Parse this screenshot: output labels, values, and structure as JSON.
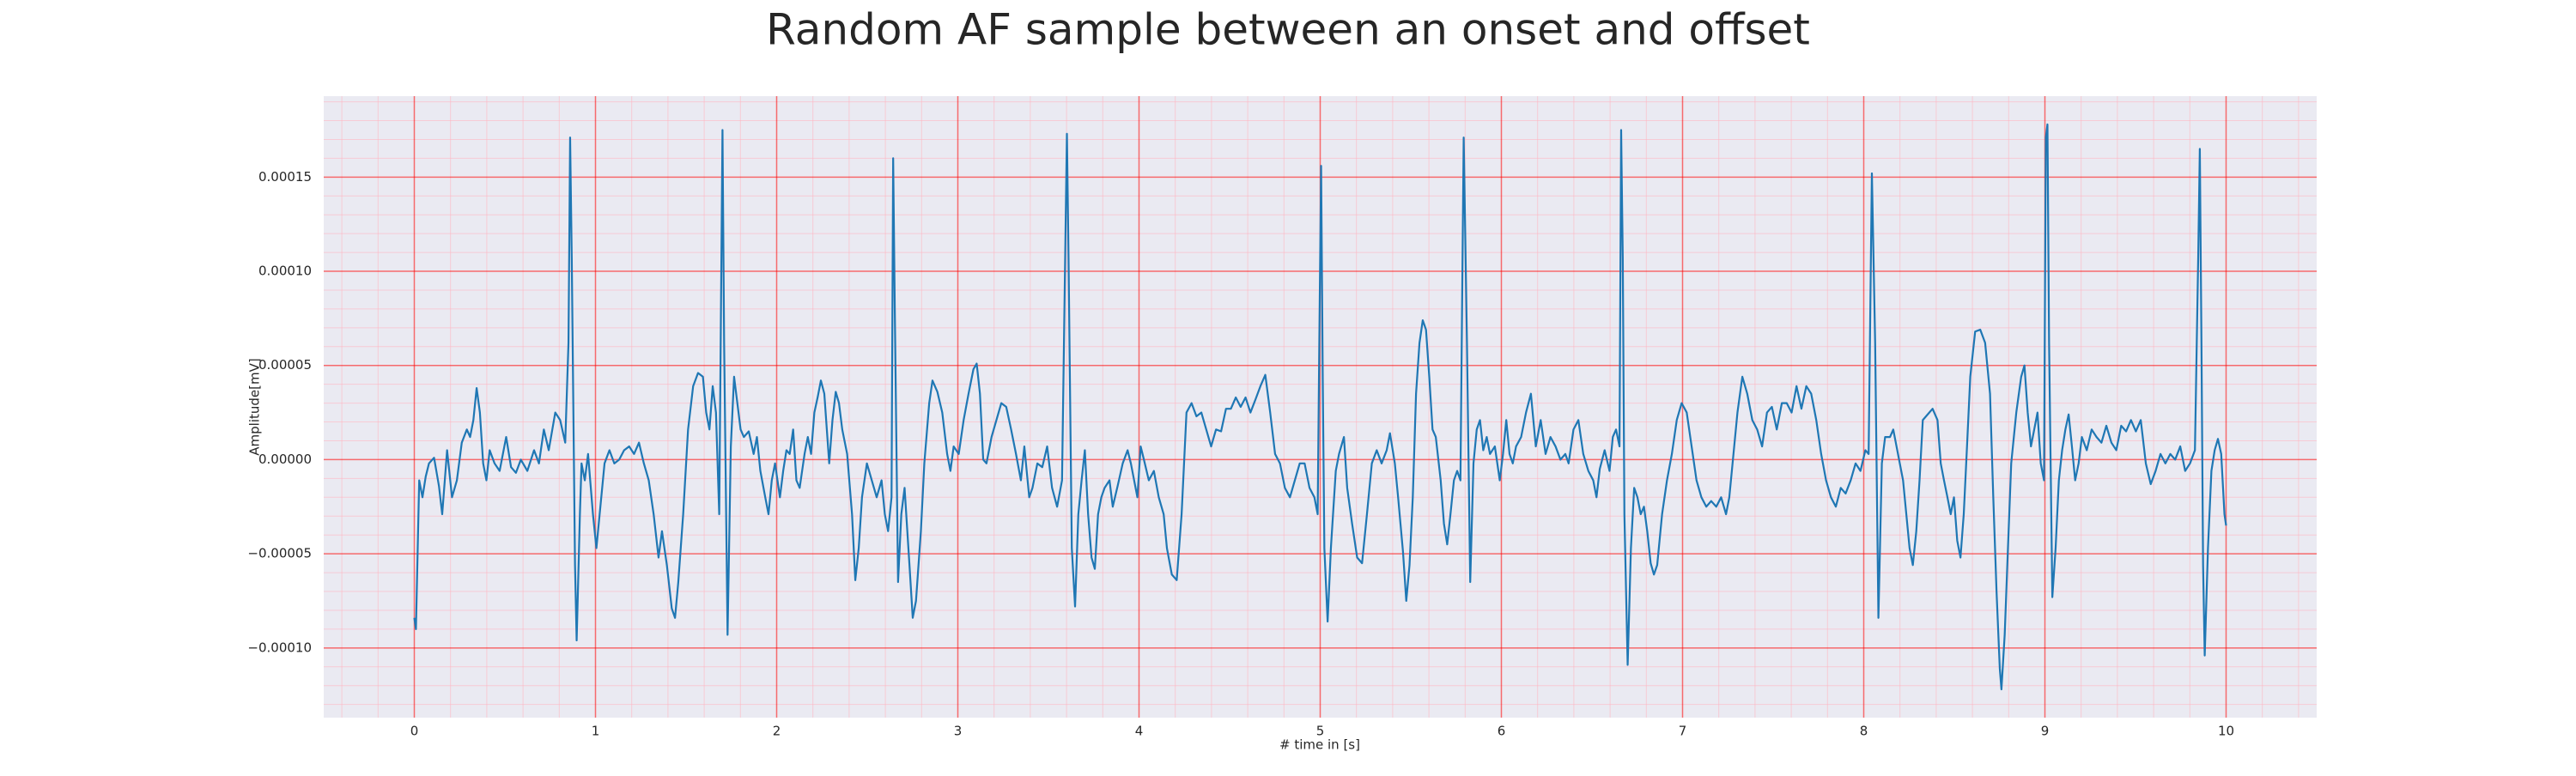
{
  "chart_data": {
    "type": "line",
    "title": "Random AF sample between an onset and offset",
    "x_label": "# time in [s]",
    "y_label": "Amplitude[mV]",
    "color": "#1f77b4",
    "grid": true,
    "minor_grid": true,
    "xlim": [
      -0.5,
      10.5
    ],
    "xticks": [
      0,
      1,
      2,
      3,
      4,
      5,
      6,
      7,
      8,
      9,
      10
    ],
    "ylim": [
      -0.000137,
      0.000193
    ],
    "yticks": [
      {
        "value": -0.0001,
        "label": "−0.00010"
      },
      {
        "value": -5e-05,
        "label": "−0.00005"
      },
      {
        "value": 0,
        "label": "0.00000"
      },
      {
        "value": 5e-05,
        "label": "0.00005"
      },
      {
        "value": 0.0001,
        "label": "0.00010"
      },
      {
        "value": 0.00015,
        "label": "0.00015"
      }
    ],
    "x": [
      0.0,
      0.009,
      0.027,
      0.045,
      0.063,
      0.081,
      0.109,
      0.136,
      0.154,
      0.181,
      0.208,
      0.235,
      0.262,
      0.29,
      0.308,
      0.326,
      0.344,
      0.362,
      0.38,
      0.398,
      0.416,
      0.443,
      0.471,
      0.507,
      0.534,
      0.561,
      0.588,
      0.624,
      0.661,
      0.688,
      0.715,
      0.742,
      0.778,
      0.805,
      0.833,
      0.851,
      0.86,
      0.869,
      0.887,
      0.896,
      0.914,
      0.923,
      0.941,
      0.959,
      0.986,
      1.005,
      1.023,
      1.05,
      1.077,
      1.104,
      1.131,
      1.158,
      1.186,
      1.213,
      1.24,
      1.267,
      1.294,
      1.321,
      1.348,
      1.367,
      1.394,
      1.421,
      1.439,
      1.457,
      1.484,
      1.511,
      1.539,
      1.566,
      1.593,
      1.611,
      1.629,
      1.647,
      1.665,
      1.683,
      1.701,
      1.71,
      1.729,
      1.747,
      1.765,
      1.783,
      1.801,
      1.819,
      1.846,
      1.873,
      1.891,
      1.91,
      1.937,
      1.955,
      1.973,
      1.991,
      2.018,
      2.036,
      2.054,
      2.072,
      2.091,
      2.109,
      2.127,
      2.154,
      2.172,
      2.19,
      2.208,
      2.226,
      2.244,
      2.263,
      2.29,
      2.308,
      2.326,
      2.344,
      2.362,
      2.389,
      2.416,
      2.434,
      2.453,
      2.471,
      2.498,
      2.525,
      2.552,
      2.579,
      2.597,
      2.615,
      2.634,
      2.643,
      2.652,
      2.67,
      2.688,
      2.706,
      2.733,
      2.751,
      2.769,
      2.796,
      2.815,
      2.842,
      2.86,
      2.887,
      2.914,
      2.941,
      2.959,
      2.977,
      3.005,
      3.032,
      3.059,
      3.086,
      3.104,
      3.122,
      3.14,
      3.158,
      3.186,
      3.213,
      3.24,
      3.267,
      3.294,
      3.321,
      3.348,
      3.367,
      3.394,
      3.412,
      3.439,
      3.466,
      3.493,
      3.52,
      3.548,
      3.575,
      3.602,
      3.611,
      3.629,
      3.647,
      3.665,
      3.683,
      3.701,
      3.719,
      3.738,
      3.756,
      3.774,
      3.792,
      3.81,
      3.837,
      3.855,
      3.882,
      3.91,
      3.937,
      3.955,
      3.973,
      3.991,
      4.009,
      4.027,
      4.054,
      4.082,
      4.109,
      4.136,
      4.154,
      4.181,
      4.208,
      4.235,
      4.262,
      4.29,
      4.317,
      4.344,
      4.371,
      4.398,
      4.425,
      4.453,
      4.48,
      4.507,
      4.534,
      4.561,
      4.588,
      4.615,
      4.643,
      4.67,
      4.697,
      4.724,
      4.751,
      4.778,
      4.805,
      4.833,
      4.86,
      4.887,
      4.914,
      4.941,
      4.968,
      4.986,
      4.995,
      5.005,
      5.014,
      5.023,
      5.041,
      5.059,
      5.086,
      5.104,
      5.131,
      5.149,
      5.176,
      5.204,
      5.231,
      5.258,
      5.285,
      5.312,
      5.339,
      5.367,
      5.385,
      5.412,
      5.43,
      5.457,
      5.475,
      5.493,
      5.511,
      5.529,
      5.548,
      5.566,
      5.584,
      5.602,
      5.62,
      5.638,
      5.665,
      5.683,
      5.701,
      5.719,
      5.738,
      5.756,
      5.774,
      5.792,
      5.81,
      5.828,
      5.846,
      5.864,
      5.882,
      5.9,
      5.919,
      5.937,
      5.964,
      5.991,
      6.009,
      6.027,
      6.045,
      6.063,
      6.081,
      6.109,
      6.136,
      6.163,
      6.19,
      6.217,
      6.244,
      6.271,
      6.299,
      6.326,
      6.353,
      6.371,
      6.398,
      6.425,
      6.452,
      6.48,
      6.507,
      6.525,
      6.543,
      6.57,
      6.597,
      6.615,
      6.633,
      6.652,
      6.661,
      6.67,
      6.679,
      6.697,
      6.715,
      6.733,
      6.751,
      6.769,
      6.787,
      6.805,
      6.824,
      6.842,
      6.86,
      6.887,
      6.914,
      6.941,
      6.968,
      6.995,
      7.023,
      7.05,
      7.077,
      7.104,
      7.131,
      7.158,
      7.186,
      7.213,
      7.24,
      7.258,
      7.276,
      7.303,
      7.33,
      7.357,
      7.385,
      7.412,
      7.439,
      7.466,
      7.493,
      7.52,
      7.548,
      7.575,
      7.602,
      7.629,
      7.656,
      7.683,
      7.71,
      7.738,
      7.765,
      7.792,
      7.819,
      7.846,
      7.873,
      7.9,
      7.928,
      7.955,
      7.982,
      8.009,
      8.027,
      8.045,
      8.063,
      8.081,
      8.1,
      8.118,
      8.145,
      8.163,
      8.181,
      8.199,
      8.217,
      8.235,
      8.253,
      8.271,
      8.29,
      8.308,
      8.326,
      8.353,
      8.38,
      8.407,
      8.425,
      8.443,
      8.462,
      8.48,
      8.498,
      8.516,
      8.534,
      8.552,
      8.57,
      8.588,
      8.615,
      8.643,
      8.67,
      8.697,
      8.715,
      8.733,
      8.751,
      8.76,
      8.778,
      8.796,
      8.814,
      8.842,
      8.869,
      8.887,
      8.905,
      8.923,
      8.941,
      8.959,
      8.977,
      8.995,
      9.005,
      9.014,
      9.023,
      9.041,
      9.059,
      9.077,
      9.095,
      9.113,
      9.131,
      9.149,
      9.167,
      9.186,
      9.204,
      9.231,
      9.258,
      9.285,
      9.312,
      9.339,
      9.367,
      9.394,
      9.421,
      9.448,
      9.475,
      9.502,
      9.529,
      9.557,
      9.584,
      9.611,
      9.638,
      9.665,
      9.692,
      9.719,
      9.747,
      9.774,
      9.801,
      9.828,
      9.846,
      9.855,
      9.864,
      9.873,
      9.882,
      9.9,
      9.919,
      9.937,
      9.955,
      9.973,
      9.991,
      10.0
    ],
    "values": [
      -8.4e-05,
      -9e-05,
      -1.1e-05,
      -2e-05,
      -9e-06,
      -2e-06,
      1e-06,
      -1.4e-05,
      -2.9e-05,
      5e-06,
      -2e-05,
      -1.1e-05,
      9e-06,
      1.6e-05,
      1.2e-05,
      2.1e-05,
      3.8e-05,
      2.5e-05,
      -2e-06,
      -1.1e-05,
      5e-06,
      -2e-06,
      -6e-06,
      1.2e-05,
      -4e-06,
      -7e-06,
      0,
      -6e-06,
      5e-06,
      -2e-06,
      1.6e-05,
      5e-06,
      2.5e-05,
      2.1e-05,
      9e-06,
      6.2e-05,
      0.000171,
      0.000107,
      -5.6e-05,
      -9.6e-05,
      -2.9e-05,
      -2e-06,
      -1.1e-05,
      3e-06,
      -2.9e-05,
      -4.7e-05,
      -2.9e-05,
      -2e-06,
      5e-06,
      -2e-06,
      0,
      5e-06,
      7e-06,
      3e-06,
      9e-06,
      -2e-06,
      -1.1e-05,
      -2.9e-05,
      -5.2e-05,
      -3.8e-05,
      -5.6e-05,
      -7.9e-05,
      -8.4e-05,
      -6.5e-05,
      -2.9e-05,
      1.6e-05,
      3.9e-05,
      4.6e-05,
      4.4e-05,
      2.5e-05,
      1.6e-05,
      3.9e-05,
      2.5e-05,
      -2.9e-05,
      0.000175,
      6.2e-05,
      -9.3e-05,
      7e-06,
      4.4e-05,
      3e-05,
      1.6e-05,
      1.2e-05,
      1.5e-05,
      3e-06,
      1.2e-05,
      -6e-06,
      -2e-05,
      -2.9e-05,
      -1.1e-05,
      -2e-06,
      -2e-05,
      -6e-06,
      5e-06,
      3e-06,
      1.6e-05,
      -1.1e-05,
      -1.5e-05,
      3e-06,
      1.2e-05,
      3e-06,
      2.5e-05,
      3.3e-05,
      4.2e-05,
      3.5e-05,
      -2e-06,
      2.1e-05,
      3.6e-05,
      3e-05,
      1.6e-05,
      3e-06,
      -2.9e-05,
      -6.4e-05,
      -4.7e-05,
      -2e-05,
      -2e-06,
      -1.1e-05,
      -2e-05,
      -1.1e-05,
      -2.9e-05,
      -3.8e-05,
      -2e-05,
      0.00016,
      8e-05,
      -6.5e-05,
      -2.9e-05,
      -1.5e-05,
      -5.6e-05,
      -8.4e-05,
      -7.5e-05,
      -3.8e-05,
      -2e-06,
      3e-05,
      4.2e-05,
      3.6e-05,
      2.5e-05,
      3e-06,
      -6e-06,
      7e-06,
      3e-06,
      2.1e-05,
      3.5e-05,
      4.8e-05,
      5.1e-05,
      3.5e-05,
      0,
      -2e-06,
      1.2e-05,
      2.1e-05,
      3e-05,
      2.8e-05,
      1.6e-05,
      3e-06,
      -1.1e-05,
      7e-06,
      -2e-05,
      -1.5e-05,
      -2e-06,
      -4e-06,
      7e-06,
      -1.5e-05,
      -2.5e-05,
      -1.1e-05,
      0.000173,
      0.000107,
      -4.7e-05,
      -7.8e-05,
      -2.9e-05,
      -1.1e-05,
      5e-06,
      -2.9e-05,
      -5.2e-05,
      -5.8e-05,
      -2.9e-05,
      -2e-05,
      -1.5e-05,
      -1.1e-05,
      -2.5e-05,
      -1.4e-05,
      -2e-06,
      5e-06,
      -2e-06,
      -1.1e-05,
      -2e-05,
      7e-06,
      0,
      -1.1e-05,
      -6e-06,
      -2e-05,
      -2.9e-05,
      -4.7e-05,
      -6.1e-05,
      -6.4e-05,
      -2.9e-05,
      2.5e-05,
      3e-05,
      2.3e-05,
      2.5e-05,
      1.6e-05,
      7e-06,
      1.6e-05,
      1.5e-05,
      2.7e-05,
      2.7e-05,
      3.3e-05,
      2.8e-05,
      3.3e-05,
      2.5e-05,
      3.2e-05,
      3.9e-05,
      4.5e-05,
      2.5e-05,
      3e-06,
      -2e-06,
      -1.5e-05,
      -2e-05,
      -1.1e-05,
      -2e-06,
      -2e-06,
      -1.5e-05,
      -2e-05,
      -2.9e-05,
      6.2e-05,
      0.000156,
      4.4e-05,
      -4.7e-05,
      -8.6e-05,
      -4.7e-05,
      -6e-06,
      3e-06,
      1.2e-05,
      -1.5e-05,
      -3.4e-05,
      -5.2e-05,
      -5.5e-05,
      -2.9e-05,
      -2e-06,
      5e-06,
      -2e-06,
      5e-06,
      1.4e-05,
      -2e-06,
      -2e-05,
      -4.9e-05,
      -7.5e-05,
      -5.6e-05,
      -2e-05,
      3.5e-05,
      6.2e-05,
      7.4e-05,
      6.9e-05,
      4.4e-05,
      1.6e-05,
      1.2e-05,
      -1.1e-05,
      -3.4e-05,
      -4.5e-05,
      -2.9e-05,
      -1.1e-05,
      -6e-06,
      -1.1e-05,
      0.000171,
      6.2e-05,
      -6.5e-05,
      -2e-06,
      1.6e-05,
      2.1e-05,
      5e-06,
      1.2e-05,
      3e-06,
      7e-06,
      -1.1e-05,
      3e-06,
      2.1e-05,
      3e-06,
      -2e-06,
      7e-06,
      1.2e-05,
      2.5e-05,
      3.5e-05,
      7e-06,
      2.1e-05,
      3e-06,
      1.2e-05,
      7e-06,
      0,
      3e-06,
      -2e-06,
      1.6e-05,
      2.1e-05,
      3e-06,
      -6e-06,
      -1.1e-05,
      -2e-05,
      -5e-06,
      5e-06,
      -6e-06,
      1.2e-05,
      1.6e-05,
      7e-06,
      0.000175,
      0.000107,
      -2.9e-05,
      -0.000109,
      -4.7e-05,
      -1.5e-05,
      -2e-05,
      -2.9e-05,
      -2.5e-05,
      -3.8e-05,
      -5.5e-05,
      -6.1e-05,
      -5.6e-05,
      -2.9e-05,
      -1.1e-05,
      3e-06,
      2.1e-05,
      3e-05,
      2.5e-05,
      7e-06,
      -1.1e-05,
      -2e-05,
      -2.5e-05,
      -2.2e-05,
      -2.5e-05,
      -2e-05,
      -2.9e-05,
      -2e-05,
      -2e-06,
      2.5e-05,
      4.4e-05,
      3.5e-05,
      2.1e-05,
      1.6e-05,
      7e-06,
      2.5e-05,
      2.8e-05,
      1.6e-05,
      3e-05,
      3e-05,
      2.5e-05,
      3.9e-05,
      2.7e-05,
      3.9e-05,
      3.5e-05,
      2.1e-05,
      3e-06,
      -1.1e-05,
      -2e-05,
      -2.5e-05,
      -1.5e-05,
      -1.8e-05,
      -1.1e-05,
      -2e-06,
      -6e-06,
      5e-06,
      3e-06,
      0.000152,
      6.2e-05,
      -8.4e-05,
      -2e-06,
      1.2e-05,
      1.2e-05,
      1.6e-05,
      7e-06,
      -2e-06,
      -1.1e-05,
      -2.9e-05,
      -4.7e-05,
      -5.6e-05,
      -3.8e-05,
      -1.1e-05,
      2.1e-05,
      2.4e-05,
      2.7e-05,
      2.1e-05,
      -2e-06,
      -1.1e-05,
      -2e-05,
      -2.9e-05,
      -2e-05,
      -4.3e-05,
      -5.2e-05,
      -2.9e-05,
      7e-06,
      4.4e-05,
      6.8e-05,
      6.9e-05,
      6.2e-05,
      3.5e-05,
      -2e-05,
      -7e-05,
      -0.000111,
      -0.000122,
      -9.3e-05,
      -4.7e-05,
      -2e-06,
      2.5e-05,
      4.4e-05,
      5e-05,
      2.5e-05,
      7e-06,
      1.6e-05,
      2.5e-05,
      -2e-06,
      -1.1e-05,
      0.000171,
      0.000178,
      6.2e-05,
      -7.3e-05,
      -4.7e-05,
      -1.1e-05,
      5e-06,
      1.6e-05,
      2.4e-05,
      7e-06,
      -1.1e-05,
      -2e-06,
      1.2e-05,
      5e-06,
      1.6e-05,
      1.2e-05,
      9e-06,
      1.8e-05,
      9e-06,
      5e-06,
      1.8e-05,
      1.5e-05,
      2.1e-05,
      1.5e-05,
      2.1e-05,
      -2e-06,
      -1.3e-05,
      -6e-06,
      3e-06,
      -2e-06,
      3e-06,
      0,
      7e-06,
      -6e-06,
      -2e-06,
      5e-06,
      0.000107,
      0.000165,
      6.2e-05,
      -5.6e-05,
      -0.000104,
      -4.7e-05,
      -6e-06,
      5e-06,
      1.1e-05,
      3e-06,
      -2.9e-05,
      -3.5e-05
    ]
  }
}
